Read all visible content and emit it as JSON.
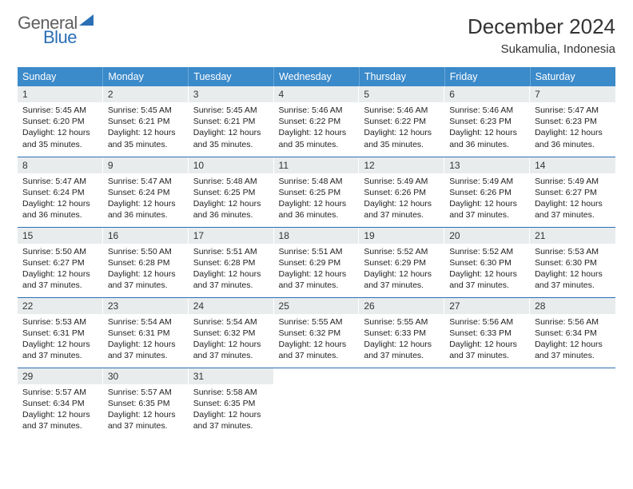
{
  "logo": {
    "line1": "General",
    "line2": "Blue"
  },
  "title": "December 2024",
  "location": "Sukamulia, Indonesia",
  "colors": {
    "header_bg": "#3b8aca",
    "header_border": "#6aa8d8",
    "row_border": "#2a6fb5",
    "daynum_bg": "#e9eced",
    "logo_gray": "#5e5e5e",
    "logo_blue": "#2a6fb5"
  },
  "weekdays": [
    "Sunday",
    "Monday",
    "Tuesday",
    "Wednesday",
    "Thursday",
    "Friday",
    "Saturday"
  ],
  "weeks": [
    [
      {
        "n": "1",
        "sr": "5:45 AM",
        "ss": "6:20 PM",
        "dl": "12 hours and 35 minutes."
      },
      {
        "n": "2",
        "sr": "5:45 AM",
        "ss": "6:21 PM",
        "dl": "12 hours and 35 minutes."
      },
      {
        "n": "3",
        "sr": "5:45 AM",
        "ss": "6:21 PM",
        "dl": "12 hours and 35 minutes."
      },
      {
        "n": "4",
        "sr": "5:46 AM",
        "ss": "6:22 PM",
        "dl": "12 hours and 35 minutes."
      },
      {
        "n": "5",
        "sr": "5:46 AM",
        "ss": "6:22 PM",
        "dl": "12 hours and 35 minutes."
      },
      {
        "n": "6",
        "sr": "5:46 AM",
        "ss": "6:23 PM",
        "dl": "12 hours and 36 minutes."
      },
      {
        "n": "7",
        "sr": "5:47 AM",
        "ss": "6:23 PM",
        "dl": "12 hours and 36 minutes."
      }
    ],
    [
      {
        "n": "8",
        "sr": "5:47 AM",
        "ss": "6:24 PM",
        "dl": "12 hours and 36 minutes."
      },
      {
        "n": "9",
        "sr": "5:47 AM",
        "ss": "6:24 PM",
        "dl": "12 hours and 36 minutes."
      },
      {
        "n": "10",
        "sr": "5:48 AM",
        "ss": "6:25 PM",
        "dl": "12 hours and 36 minutes."
      },
      {
        "n": "11",
        "sr": "5:48 AM",
        "ss": "6:25 PM",
        "dl": "12 hours and 36 minutes."
      },
      {
        "n": "12",
        "sr": "5:49 AM",
        "ss": "6:26 PM",
        "dl": "12 hours and 37 minutes."
      },
      {
        "n": "13",
        "sr": "5:49 AM",
        "ss": "6:26 PM",
        "dl": "12 hours and 37 minutes."
      },
      {
        "n": "14",
        "sr": "5:49 AM",
        "ss": "6:27 PM",
        "dl": "12 hours and 37 minutes."
      }
    ],
    [
      {
        "n": "15",
        "sr": "5:50 AM",
        "ss": "6:27 PM",
        "dl": "12 hours and 37 minutes."
      },
      {
        "n": "16",
        "sr": "5:50 AM",
        "ss": "6:28 PM",
        "dl": "12 hours and 37 minutes."
      },
      {
        "n": "17",
        "sr": "5:51 AM",
        "ss": "6:28 PM",
        "dl": "12 hours and 37 minutes."
      },
      {
        "n": "18",
        "sr": "5:51 AM",
        "ss": "6:29 PM",
        "dl": "12 hours and 37 minutes."
      },
      {
        "n": "19",
        "sr": "5:52 AM",
        "ss": "6:29 PM",
        "dl": "12 hours and 37 minutes."
      },
      {
        "n": "20",
        "sr": "5:52 AM",
        "ss": "6:30 PM",
        "dl": "12 hours and 37 minutes."
      },
      {
        "n": "21",
        "sr": "5:53 AM",
        "ss": "6:30 PM",
        "dl": "12 hours and 37 minutes."
      }
    ],
    [
      {
        "n": "22",
        "sr": "5:53 AM",
        "ss": "6:31 PM",
        "dl": "12 hours and 37 minutes."
      },
      {
        "n": "23",
        "sr": "5:54 AM",
        "ss": "6:31 PM",
        "dl": "12 hours and 37 minutes."
      },
      {
        "n": "24",
        "sr": "5:54 AM",
        "ss": "6:32 PM",
        "dl": "12 hours and 37 minutes."
      },
      {
        "n": "25",
        "sr": "5:55 AM",
        "ss": "6:32 PM",
        "dl": "12 hours and 37 minutes."
      },
      {
        "n": "26",
        "sr": "5:55 AM",
        "ss": "6:33 PM",
        "dl": "12 hours and 37 minutes."
      },
      {
        "n": "27",
        "sr": "5:56 AM",
        "ss": "6:33 PM",
        "dl": "12 hours and 37 minutes."
      },
      {
        "n": "28",
        "sr": "5:56 AM",
        "ss": "6:34 PM",
        "dl": "12 hours and 37 minutes."
      }
    ],
    [
      {
        "n": "29",
        "sr": "5:57 AM",
        "ss": "6:34 PM",
        "dl": "12 hours and 37 minutes."
      },
      {
        "n": "30",
        "sr": "5:57 AM",
        "ss": "6:35 PM",
        "dl": "12 hours and 37 minutes."
      },
      {
        "n": "31",
        "sr": "5:58 AM",
        "ss": "6:35 PM",
        "dl": "12 hours and 37 minutes."
      },
      null,
      null,
      null,
      null
    ]
  ],
  "labels": {
    "sunrise": "Sunrise: ",
    "sunset": "Sunset: ",
    "daylight": "Daylight: "
  }
}
